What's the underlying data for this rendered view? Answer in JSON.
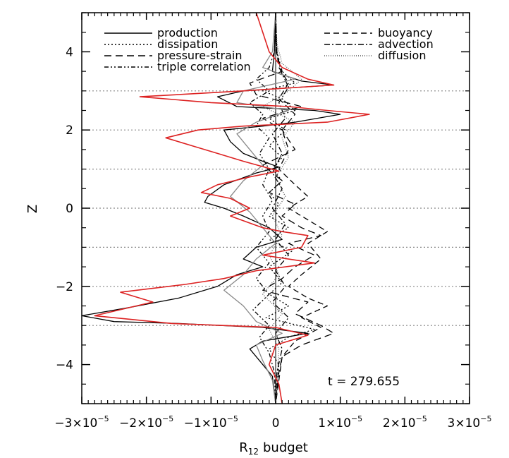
{
  "chart_data": {
    "type": "line",
    "title": "",
    "xlabel": "R",
    "xlabel_sub": "12",
    "xlabel_suffix": "budget",
    "ylabel": "Z",
    "xlim": [
      -3e-05,
      3e-05
    ],
    "ylim": [
      -5,
      5
    ],
    "x_ticks": [
      -3e-05,
      -2e-05,
      -1e-05,
      0,
      1e-05,
      2e-05,
      3e-05
    ],
    "x_tick_labels": [
      {
        "mant": "−3×10",
        "exp": "−5"
      },
      {
        "mant": "−2×10",
        "exp": "−5"
      },
      {
        "mant": "−1×10",
        "exp": "−5"
      },
      {
        "mant": "0",
        "exp": ""
      },
      {
        "mant": "1×10",
        "exp": "−5"
      },
      {
        "mant": "2×10",
        "exp": "−5"
      },
      {
        "mant": "3×10",
        "exp": "−5"
      }
    ],
    "y_ticks": [
      -4,
      -2,
      0,
      2,
      4
    ],
    "y_tick_labels": [
      "−4",
      "−2",
      "0",
      "2",
      "4"
    ],
    "hlines": [
      -3,
      -2,
      -1,
      0,
      1,
      2,
      3
    ],
    "vline_x": 0,
    "annotation": "t = 279.655",
    "legend_left": [
      "production",
      "dissipation",
      "pressure-strain",
      "triple correlation"
    ],
    "legend_right": [
      "buoyancy",
      "advection",
      "diffusion"
    ],
    "series": [
      {
        "name": "production",
        "color": "#000000",
        "dash": "",
        "points": [
          [
            0,
            5
          ],
          [
            -2e-07,
            4
          ],
          [
            -5e-07,
            3.5
          ],
          [
            4e-06,
            3.25
          ],
          [
            9e-06,
            3.15
          ],
          [
            -5e-06,
            3.0
          ],
          [
            -9e-06,
            2.85
          ],
          [
            -6e-06,
            2.6
          ],
          [
            6e-06,
            2.5
          ],
          [
            1e-05,
            2.4
          ],
          [
            3e-06,
            2.2
          ],
          [
            -2e-06,
            2.1
          ],
          [
            -8e-06,
            2.0
          ],
          [
            -7e-06,
            1.7
          ],
          [
            -5e-06,
            1.4
          ],
          [
            -2e-06,
            1.2
          ],
          [
            5e-07,
            1.05
          ],
          [
            -3e-06,
            0.9
          ],
          [
            -8e-06,
            0.6
          ],
          [
            -1.05e-05,
            0.3
          ],
          [
            -1.1e-05,
            0.15
          ],
          [
            -8e-06,
            0.0
          ],
          [
            -5e-06,
            -0.2
          ],
          [
            -1e-06,
            -0.5
          ],
          [
            1e-06,
            -0.8
          ],
          [
            -3e-06,
            -1.0
          ],
          [
            -5e-06,
            -1.3
          ],
          [
            -2e-06,
            -1.5
          ],
          [
            -6e-06,
            -1.7
          ],
          [
            -9e-06,
            -2.0
          ],
          [
            -1.5e-05,
            -2.3
          ],
          [
            -2.3e-05,
            -2.55
          ],
          [
            -3e-05,
            -2.75
          ],
          [
            -2.5e-05,
            -2.9
          ],
          [
            -1.5e-05,
            -2.95
          ],
          [
            -2e-06,
            -3.05
          ],
          [
            5e-06,
            -3.2
          ],
          [
            -2e-06,
            -3.4
          ],
          [
            -4e-06,
            -3.6
          ],
          [
            -2e-06,
            -4.0
          ],
          [
            -5e-07,
            -4.3
          ],
          [
            0,
            -5
          ]
        ]
      },
      {
        "name": "dissipation",
        "color": "#000000",
        "dash": "2,3",
        "points": [
          [
            0,
            5
          ],
          [
            2e-07,
            4
          ],
          [
            1e-06,
            3.5
          ],
          [
            3e-06,
            3.2
          ],
          [
            -2e-06,
            3.0
          ],
          [
            1e-06,
            2.8
          ],
          [
            3e-06,
            2.5
          ],
          [
            -1e-06,
            2.3
          ],
          [
            1.5e-06,
            2.0
          ],
          [
            -1e-06,
            1.6
          ],
          [
            1e-06,
            1.3
          ],
          [
            -5e-07,
            1.0
          ],
          [
            1e-06,
            0.7
          ],
          [
            -1e-06,
            0.4
          ],
          [
            5e-07,
            0.1
          ],
          [
            -1e-06,
            -0.2
          ],
          [
            2e-06,
            -0.5
          ],
          [
            -1e-06,
            -0.8
          ],
          [
            2.5e-06,
            -1.1
          ],
          [
            -1e-06,
            -1.5
          ],
          [
            1e-06,
            -1.9
          ],
          [
            -1e-06,
            -2.2
          ],
          [
            2e-06,
            -2.5
          ],
          [
            -1.5e-06,
            -2.8
          ],
          [
            6e-06,
            -3.1
          ],
          [
            2e-06,
            -3.3
          ],
          [
            -1e-06,
            -3.6
          ],
          [
            5e-07,
            -4.0
          ],
          [
            0,
            -5
          ]
        ]
      },
      {
        "name": "pressure-strain",
        "color": "#000000",
        "dash": "10,6",
        "points": [
          [
            0,
            5
          ],
          [
            0,
            4
          ],
          [
            1e-06,
            3.5
          ],
          [
            -4e-06,
            3.2
          ],
          [
            -3e-06,
            2.9
          ],
          [
            4e-06,
            2.6
          ],
          [
            -2e-06,
            2.3
          ],
          [
            1e-06,
            2.0
          ],
          [
            3e-06,
            1.5
          ],
          [
            -2e-06,
            1.1
          ],
          [
            1e-06,
            0.7
          ],
          [
            -1e-06,
            0.4
          ],
          [
            3e-06,
            0.1
          ],
          [
            1e-06,
            -0.2
          ],
          [
            4e-06,
            -0.5
          ],
          [
            7e-06,
            -0.7
          ],
          [
            2e-06,
            -0.9
          ],
          [
            6e-06,
            -1.2
          ],
          [
            3e-06,
            -1.5
          ],
          [
            1e-06,
            -1.8
          ],
          [
            -2e-06,
            -2.1
          ],
          [
            5e-06,
            -2.4
          ],
          [
            3e-06,
            -2.7
          ],
          [
            7e-06,
            -3.0
          ],
          [
            9e-06,
            -3.2
          ],
          [
            4e-06,
            -3.5
          ],
          [
            1e-06,
            -3.8
          ],
          [
            5e-07,
            -4.2
          ],
          [
            0,
            -5
          ]
        ]
      },
      {
        "name": "triple correlation",
        "color": "#000000",
        "dash": "6,3,2,3,2,3",
        "points": [
          [
            0,
            5
          ],
          [
            -2e-07,
            4
          ],
          [
            -1e-06,
            3.6
          ],
          [
            -3e-06,
            3.3
          ],
          [
            -1e-06,
            3.0
          ],
          [
            -4e-06,
            2.7
          ],
          [
            -2e-06,
            2.4
          ],
          [
            -3e-06,
            2.1
          ],
          [
            -1e-06,
            1.8
          ],
          [
            -2.5e-06,
            1.4
          ],
          [
            -1e-06,
            1.0
          ],
          [
            -2e-06,
            0.6
          ],
          [
            -5e-07,
            0.2
          ],
          [
            -2e-06,
            -0.2
          ],
          [
            -1e-06,
            -0.6
          ],
          [
            -3e-06,
            -1.0
          ],
          [
            -1e-06,
            -1.4
          ],
          [
            -3e-06,
            -1.8
          ],
          [
            -1e-06,
            -2.2
          ],
          [
            -3.5e-06,
            -2.6
          ],
          [
            -1e-06,
            -3.0
          ],
          [
            -2.5e-06,
            -3.3
          ],
          [
            -1e-06,
            -3.7
          ],
          [
            -2e-07,
            -4.2
          ],
          [
            0,
            -5
          ]
        ]
      },
      {
        "name": "buoyancy",
        "color": "#000000",
        "dash": "8,5",
        "points": [
          [
            0,
            5
          ],
          [
            0,
            4.2
          ],
          [
            5e-07,
            3.6
          ],
          [
            2e-06,
            3.2
          ],
          [
            5e-07,
            2.8
          ],
          [
            3e-06,
            2.4
          ],
          [
            1e-06,
            2.0
          ],
          [
            2e-06,
            1.5
          ],
          [
            5e-07,
            1.0
          ],
          [
            3e-06,
            0.6
          ],
          [
            5e-06,
            0.3
          ],
          [
            2e-06,
            0.0
          ],
          [
            5e-06,
            -0.3
          ],
          [
            8e-06,
            -0.6
          ],
          [
            5e-06,
            -0.9
          ],
          [
            7e-06,
            -1.3
          ],
          [
            4e-06,
            -1.7
          ],
          [
            2e-06,
            -2.0
          ],
          [
            5e-06,
            -2.3
          ],
          [
            8e-06,
            -2.5
          ],
          [
            4e-06,
            -2.8
          ],
          [
            7e-06,
            -3.05
          ],
          [
            3e-06,
            -3.4
          ],
          [
            1e-06,
            -3.8
          ],
          [
            0,
            -5
          ]
        ]
      },
      {
        "name": "advection",
        "color": "#000000",
        "dash": "8,3,2,3",
        "points": [
          [
            0,
            5
          ],
          [
            2e-07,
            4
          ],
          [
            8e-07,
            3.5
          ],
          [
            2e-06,
            3.1
          ],
          [
            5e-07,
            2.7
          ],
          [
            1.5e-06,
            2.3
          ],
          [
            -5e-07,
            1.9
          ],
          [
            1e-06,
            1.4
          ],
          [
            -5e-07,
            0.9
          ],
          [
            1e-06,
            0.5
          ],
          [
            -5e-07,
            0.0
          ],
          [
            1.5e-06,
            -0.4
          ],
          [
            0.0,
            -0.8
          ],
          [
            2e-06,
            -1.2
          ],
          [
            0.0,
            -1.6
          ],
          [
            1.5e-06,
            -2.0
          ],
          [
            -5e-07,
            -2.4
          ],
          [
            2e-06,
            -2.8
          ],
          [
            0.0,
            -3.2
          ],
          [
            1e-06,
            -3.6
          ],
          [
            2e-07,
            -4.2
          ],
          [
            0,
            -5
          ]
        ]
      },
      {
        "name": "diffusion",
        "color": "#555555",
        "dash": "1,2",
        "points": [
          [
            0,
            5
          ],
          [
            2e-07,
            4.2
          ],
          [
            1e-06,
            3.7
          ],
          [
            4e-06,
            3.3
          ],
          [
            2e-06,
            3.0
          ],
          [
            -2e-06,
            2.6
          ],
          [
            3e-06,
            2.2
          ],
          [
            1e-06,
            1.8
          ],
          [
            2e-06,
            1.3
          ],
          [
            0.0,
            0.8
          ],
          [
            1.5e-06,
            0.3
          ],
          [
            -5e-07,
            -0.2
          ],
          [
            1e-06,
            -0.7
          ],
          [
            -1e-06,
            -1.2
          ],
          [
            5e-07,
            -1.7
          ],
          [
            -2e-06,
            -2.2
          ],
          [
            1e-06,
            -2.7
          ],
          [
            -1e-06,
            -3.1
          ],
          [
            5e-07,
            -3.6
          ],
          [
            0,
            -5
          ]
        ]
      },
      {
        "name": "",
        "color": "#888888",
        "dash": "",
        "points": [
          [
            0,
            5
          ],
          [
            -5e-07,
            4
          ],
          [
            -2e-06,
            3.6
          ],
          [
            3e-06,
            3.3
          ],
          [
            -5e-06,
            3.0
          ],
          [
            -6e-06,
            2.7
          ],
          [
            2e-06,
            2.5
          ],
          [
            -3e-06,
            2.2
          ],
          [
            -6e-06,
            1.9
          ],
          [
            -4e-06,
            1.5
          ],
          [
            -2e-06,
            1.1
          ],
          [
            -5e-06,
            0.7
          ],
          [
            -7e-06,
            0.3
          ],
          [
            -4e-06,
            -0.1
          ],
          [
            -2e-06,
            -0.5
          ],
          [
            0.0,
            -0.9
          ],
          [
            -3e-06,
            -1.3
          ],
          [
            -5e-06,
            -1.7
          ],
          [
            -8e-06,
            -2.1
          ],
          [
            -5e-06,
            -2.5
          ],
          [
            -3e-06,
            -2.9
          ],
          [
            1e-06,
            -3.2
          ],
          [
            -3e-06,
            -3.5
          ],
          [
            -2e-06,
            -3.9
          ],
          [
            -5e-07,
            -4.4
          ],
          [
            0,
            -5
          ]
        ]
      },
      {
        "name": "",
        "color": "#dd2222",
        "dash": "",
        "points": [
          [
            -3e-06,
            5
          ],
          [
            -2e-06,
            4.5
          ],
          [
            -1e-06,
            4.0
          ],
          [
            1e-06,
            3.6
          ],
          [
            5e-06,
            3.3
          ],
          [
            9e-06,
            3.15
          ],
          [
            -5e-06,
            3.0
          ],
          [
            -2.1e-05,
            2.85
          ],
          [
            -1e-05,
            2.7
          ],
          [
            2e-06,
            2.6
          ],
          [
            8e-06,
            2.5
          ],
          [
            1.45e-05,
            2.4
          ],
          [
            8e-06,
            2.2
          ],
          [
            -5e-06,
            2.1
          ],
          [
            -1.2e-05,
            2.0
          ],
          [
            -1.7e-05,
            1.8
          ],
          [
            -1.3e-05,
            1.6
          ],
          [
            -9e-06,
            1.4
          ],
          [
            -5e-06,
            1.2
          ],
          [
            5e-07,
            0.95
          ],
          [
            -4e-06,
            0.8
          ],
          [
            -9e-06,
            0.6
          ],
          [
            -1.15e-05,
            0.4
          ],
          [
            -7e-06,
            0.25
          ],
          [
            -4e-06,
            0.0
          ],
          [
            -7e-06,
            -0.2
          ],
          [
            -2e-06,
            -0.5
          ],
          [
            1e-06,
            -0.6
          ],
          [
            5e-06,
            -0.7
          ],
          [
            4e-06,
            -1.0
          ],
          [
            -2e-06,
            -1.2
          ],
          [
            6e-06,
            -1.4
          ],
          [
            -3e-06,
            -1.6
          ],
          [
            -8e-06,
            -1.8
          ],
          [
            -1.4e-05,
            -1.95
          ],
          [
            -2.4e-05,
            -2.15
          ],
          [
            -1.9e-05,
            -2.4
          ],
          [
            -2.8e-05,
            -2.75
          ],
          [
            -1.6e-05,
            -2.95
          ],
          [
            0.0,
            -3.05
          ],
          [
            5e-06,
            -3.25
          ],
          [
            0.0,
            -3.5
          ],
          [
            -1e-06,
            -4.0
          ],
          [
            5e-07,
            -4.5
          ],
          [
            1e-06,
            -5
          ]
        ]
      }
    ]
  }
}
